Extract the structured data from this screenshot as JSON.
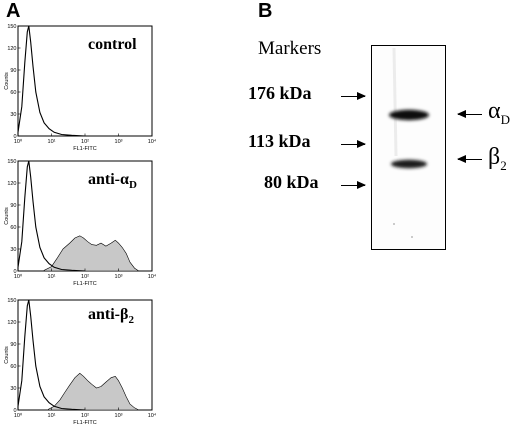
{
  "panel_a": {
    "letter": "A",
    "x_axis_title": "FL1-FITC",
    "y_axis_title": "Counts",
    "x_ticks": [
      "10⁰",
      "10¹",
      "10²",
      "10³",
      "10⁴"
    ],
    "y_ticks": [
      "0",
      "30",
      "60",
      "90",
      "120",
      "150"
    ],
    "histograms": [
      {
        "label_main": "control",
        "label_sub": ""
      },
      {
        "label_main": "anti-α",
        "label_sub": "D"
      },
      {
        "label_main": "anti-β",
        "label_sub": "2"
      }
    ]
  },
  "panel_b": {
    "letter": "B",
    "markers_title": "Markers",
    "markers": [
      "176 kDa",
      "113 kDa",
      "80 kDa"
    ],
    "bands": [
      {
        "main": "α",
        "sub": "D"
      },
      {
        "main": "β",
        "sub": "2"
      }
    ]
  },
  "chart_data": [
    {
      "type": "area",
      "panel": "control",
      "xlabel": "FL1-FITC",
      "ylabel": "Counts",
      "x_scale": "log",
      "xlim": [
        1,
        10000
      ],
      "ylim": [
        0,
        150
      ],
      "series": [
        {
          "fill": "none",
          "x": [
            1,
            1.3,
            1.6,
            1.9,
            2.1,
            2.4,
            2.8,
            3.4,
            4.5,
            6,
            8.5,
            12,
            20,
            40,
            100
          ],
          "values": [
            5,
            40,
            100,
            142,
            150,
            128,
            95,
            60,
            32,
            18,
            10,
            5,
            2,
            1,
            0
          ]
        }
      ]
    },
    {
      "type": "area",
      "panel": "anti-αD",
      "xlabel": "FL1-FITC",
      "ylabel": "Counts",
      "x_scale": "log",
      "xlim": [
        1,
        10000
      ],
      "ylim": [
        0,
        150
      ],
      "series": [
        {
          "fill": "none",
          "x": [
            1,
            1.3,
            1.6,
            1.9,
            2.1,
            2.4,
            2.8,
            3.4,
            4.5,
            6,
            8.5,
            12,
            20,
            40,
            100
          ],
          "values": [
            5,
            40,
            100,
            142,
            150,
            128,
            95,
            60,
            32,
            18,
            10,
            5,
            2,
            1,
            0
          ]
        },
        {
          "fill": "#c8c8c8",
          "x": [
            6,
            10,
            15,
            22,
            35,
            50,
            70,
            90,
            120,
            160,
            220,
            300,
            420,
            600,
            800,
            1000,
            1300,
            1700,
            2200,
            3000,
            4000
          ],
          "values": [
            1,
            6,
            18,
            30,
            38,
            45,
            48,
            45,
            40,
            36,
            35,
            38,
            34,
            38,
            42,
            38,
            32,
            24,
            12,
            4,
            0
          ]
        }
      ]
    },
    {
      "type": "area",
      "panel": "anti-β2",
      "xlabel": "FL1-FITC",
      "ylabel": "Counts",
      "x_scale": "log",
      "xlim": [
        1,
        10000
      ],
      "ylim": [
        0,
        150
      ],
      "series": [
        {
          "fill": "none",
          "x": [
            1,
            1.3,
            1.6,
            1.9,
            2.1,
            2.4,
            2.8,
            3.4,
            4.5,
            6,
            8.5,
            12,
            20,
            40,
            100
          ],
          "values": [
            5,
            40,
            100,
            142,
            150,
            128,
            95,
            60,
            32,
            18,
            10,
            5,
            2,
            1,
            0
          ]
        },
        {
          "fill": "#c8c8c8",
          "x": [
            8,
            12,
            18,
            25,
            35,
            50,
            70,
            90,
            120,
            160,
            220,
            300,
            420,
            600,
            800,
            1000,
            1300,
            1700,
            2200,
            3000,
            4000
          ],
          "values": [
            1,
            5,
            14,
            24,
            34,
            44,
            50,
            46,
            40,
            35,
            30,
            32,
            38,
            44,
            46,
            40,
            30,
            18,
            8,
            3,
            0
          ]
        }
      ]
    }
  ]
}
